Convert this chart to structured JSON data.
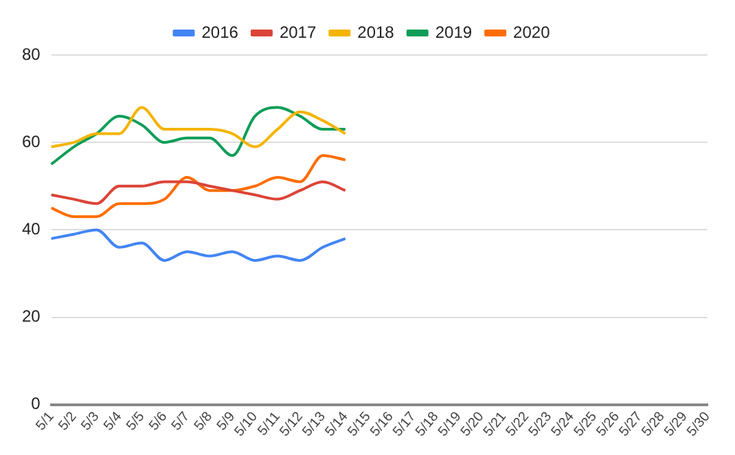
{
  "chart_data": {
    "type": "line",
    "categories": [
      "5/1",
      "5/2",
      "5/3",
      "5/4",
      "5/5",
      "5/6",
      "5/7",
      "5/8",
      "5/9",
      "5/10",
      "5/11",
      "5/12",
      "5/13",
      "5/14",
      "5/15",
      "5/16",
      "5/17",
      "5/18",
      "5/19",
      "5/20",
      "5/21",
      "5/22",
      "5/23",
      "5/24",
      "5/25",
      "5/26",
      "5/27",
      "5/28",
      "5/29",
      "5/30"
    ],
    "series": [
      {
        "name": "2016",
        "color": "#4285f4",
        "values": [
          38,
          39,
          40,
          36,
          37,
          33,
          35,
          34,
          35,
          33,
          34,
          33,
          36,
          38,
          null,
          null,
          null,
          null,
          null,
          null,
          null,
          null,
          null,
          null,
          null,
          null,
          null,
          null,
          null,
          null
        ]
      },
      {
        "name": "2017",
        "color": "#db4437",
        "values": [
          48,
          47,
          46,
          50,
          50,
          51,
          51,
          50,
          49,
          48,
          47,
          49,
          51,
          49,
          null,
          null,
          null,
          null,
          null,
          null,
          null,
          null,
          null,
          null,
          null,
          null,
          null,
          null,
          null,
          null
        ]
      },
      {
        "name": "2018",
        "color": "#f4b400",
        "values": [
          59,
          60,
          62,
          62,
          68,
          63,
          63,
          63,
          62,
          59,
          63,
          67,
          65,
          62,
          null,
          null,
          null,
          null,
          null,
          null,
          null,
          null,
          null,
          null,
          null,
          null,
          null,
          null,
          null,
          null
        ]
      },
      {
        "name": "2019",
        "color": "#0f9d58",
        "values": [
          55,
          59,
          62,
          66,
          64,
          60,
          61,
          61,
          57,
          66,
          68,
          66,
          63,
          63,
          null,
          null,
          null,
          null,
          null,
          null,
          null,
          null,
          null,
          null,
          null,
          null,
          null,
          null,
          null,
          null
        ]
      },
      {
        "name": "2020",
        "color": "#ff6d00",
        "values": [
          45,
          43,
          43,
          46,
          46,
          47,
          52,
          49,
          49,
          50,
          52,
          51,
          57,
          56,
          null,
          null,
          null,
          null,
          null,
          null,
          null,
          null,
          null,
          null,
          null,
          null,
          null,
          null,
          null,
          null
        ]
      }
    ],
    "ylim": [
      0,
      80
    ],
    "yticks": [
      0,
      20,
      40,
      60,
      80
    ],
    "grid": "y",
    "legend": "top",
    "marker": "none",
    "line_style": "solid"
  }
}
